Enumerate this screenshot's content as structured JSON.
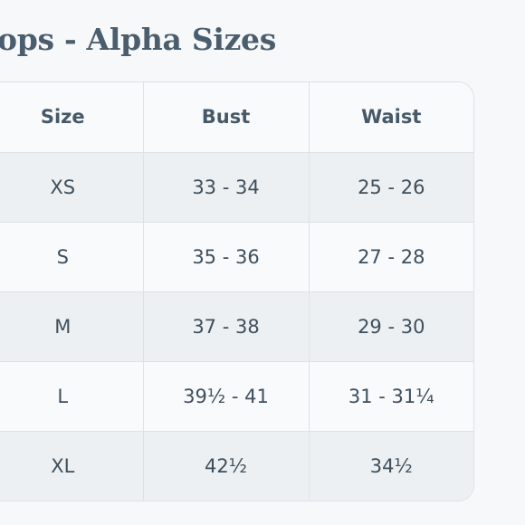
{
  "heading": "ops - Alpha Sizes",
  "table": {
    "headers": [
      "Size",
      "Bust",
      "Waist"
    ],
    "rows": [
      [
        "XS",
        "33 - 34",
        "25 - 26"
      ],
      [
        "S",
        "35 - 36",
        "27 - 28"
      ],
      [
        "M",
        "37 - 38",
        "29 - 30"
      ],
      [
        "L",
        "39½ - 41",
        "31 - 31¼"
      ],
      [
        "XL",
        "42½",
        "34½"
      ]
    ]
  }
}
